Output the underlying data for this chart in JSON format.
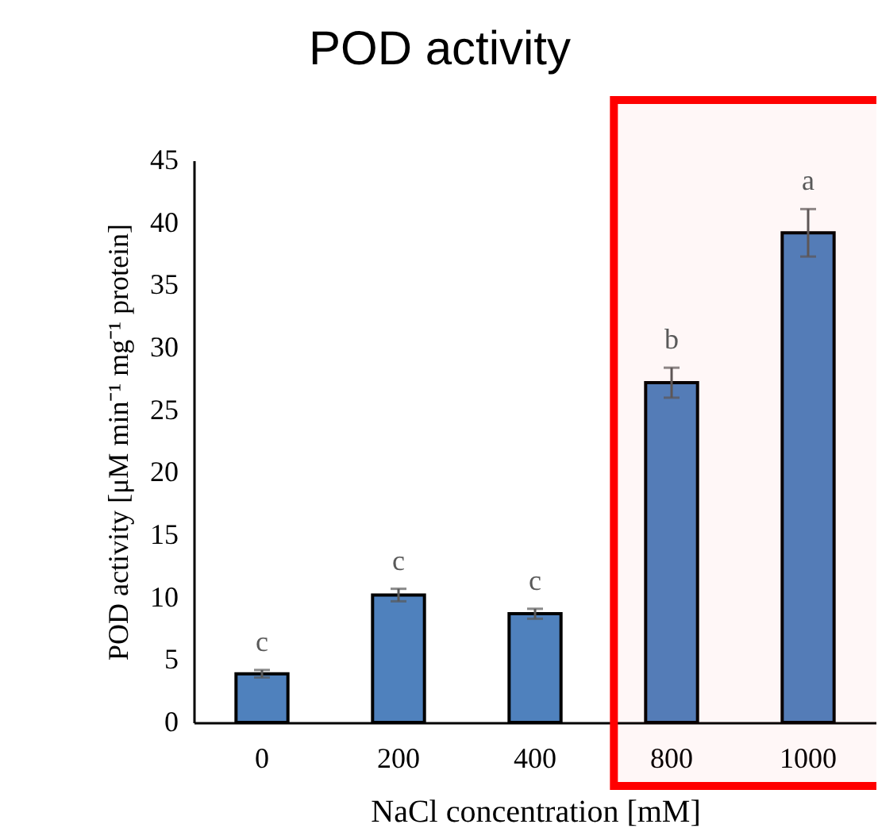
{
  "chart_data": {
    "type": "bar",
    "title": "POD activity",
    "xlabel": "NaCl concentration [mM]",
    "ylabel": "POD activity [μM min⁻¹ mg⁻¹ protein]",
    "categories": [
      "0",
      "200",
      "400",
      "800",
      "1000"
    ],
    "values": [
      3.9,
      10.2,
      8.7,
      27.2,
      39.2
    ],
    "errors": [
      0.3,
      0.5,
      0.4,
      1.2,
      1.9
    ],
    "color": "#4f81bd",
    "ylim": [
      0,
      45
    ],
    "yticks": [
      0,
      5,
      10,
      15,
      20,
      25,
      30,
      35,
      40,
      45
    ],
    "grid": false,
    "annotations": [
      {
        "text": "c",
        "x": "0",
        "y": 4.2
      },
      {
        "text": "c",
        "x": "200",
        "y": 10.7
      },
      {
        "text": "c",
        "x": "400",
        "y": 9.1
      },
      {
        "text": "b",
        "x": "800",
        "y": 28.4
      },
      {
        "text": "a",
        "x": "1000",
        "y": 41.1
      }
    ],
    "bands": [
      {
        "axis": "x",
        "from": "800",
        "to": "1000",
        "color": "#ff0000"
      }
    ]
  }
}
